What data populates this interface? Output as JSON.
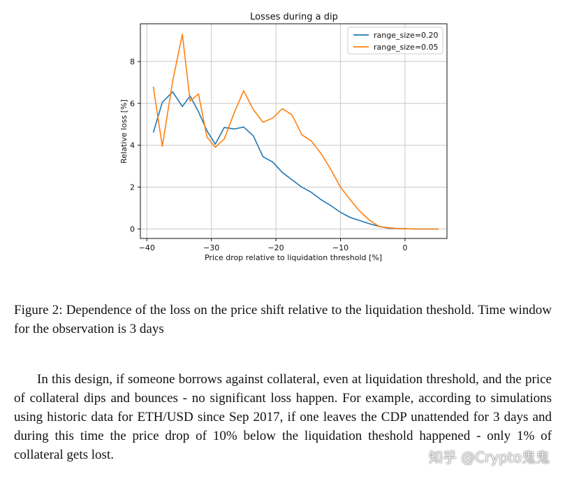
{
  "figure": {
    "caption": "Figure 2: Dependence of the loss on the price shift relative to the liquidation theshold. Time window for the observation is 3 days"
  },
  "paragraph": "In this design, if someone borrows against collateral, even at liquidation threshold, and the price of collateral dips and bounces - no significant loss happen. For example, according to simulations using historic data for ETH/USD since Sep 2017, if one leaves the CDP unattended for 3 days and during this time the price drop of 10% below the liquidation theshold happened - only 1% of collateral gets lost.",
  "watermark": "知乎 @Crypto鬼鬼",
  "chart_data": {
    "type": "line",
    "title": "Losses during a dip",
    "xlabel": "Price drop relative to liquidation threshold [%]",
    "ylabel": "Relative loss [%]",
    "xlim": [
      -41,
      6.5
    ],
    "ylim": [
      -0.45,
      9.8
    ],
    "xticks": [
      -40,
      -30,
      -20,
      -10,
      0
    ],
    "xtick_labels": [
      "−40",
      "−30",
      "−20",
      "−10",
      "0"
    ],
    "yticks": [
      0,
      2,
      4,
      6,
      8
    ],
    "ytick_labels": [
      "0",
      "2",
      "4",
      "6",
      "8"
    ],
    "grid": true,
    "legend_position": "top-right",
    "series": [
      {
        "name": "range_size=0.20",
        "color": "#1f77b4",
        "x": [
          -39,
          -37.6,
          -36,
          -34.5,
          -33.3,
          -32,
          -30.7,
          -29.4,
          -28,
          -26.4,
          -25,
          -23.5,
          -22,
          -20.5,
          -19,
          -17.5,
          -16,
          -14.5,
          -13,
          -11.5,
          -10,
          -8.5,
          -7,
          -5.5,
          -4,
          -2.5,
          -1,
          0.5,
          2,
          3.5,
          5.2
        ],
        "y": [
          4.6,
          6.05,
          6.55,
          5.85,
          6.35,
          5.6,
          4.7,
          4.05,
          4.85,
          4.78,
          4.87,
          4.45,
          3.45,
          3.2,
          2.7,
          2.35,
          2.0,
          1.75,
          1.4,
          1.12,
          0.8,
          0.55,
          0.4,
          0.25,
          0.12,
          0.04,
          0.02,
          0.01,
          0.0,
          0.0,
          0.0
        ]
      },
      {
        "name": "range_size=0.05",
        "color": "#ff7f0e",
        "x": [
          -39,
          -37.6,
          -36,
          -34.5,
          -33.3,
          -32,
          -30.7,
          -29.4,
          -28,
          -26.4,
          -25,
          -23.5,
          -22,
          -20.5,
          -19,
          -17.5,
          -16,
          -14.5,
          -13,
          -11.5,
          -10,
          -8.5,
          -7,
          -5.5,
          -4,
          -2.5,
          -1,
          0.5,
          2,
          3.5,
          5.2
        ],
        "y": [
          6.8,
          3.95,
          7.05,
          9.3,
          6.1,
          6.45,
          4.4,
          3.9,
          4.3,
          5.6,
          6.6,
          5.7,
          5.1,
          5.3,
          5.75,
          5.45,
          4.5,
          4.2,
          3.6,
          2.85,
          2.0,
          1.4,
          0.85,
          0.42,
          0.12,
          0.06,
          0.02,
          0.01,
          0.0,
          0.0,
          0.0
        ]
      }
    ]
  }
}
